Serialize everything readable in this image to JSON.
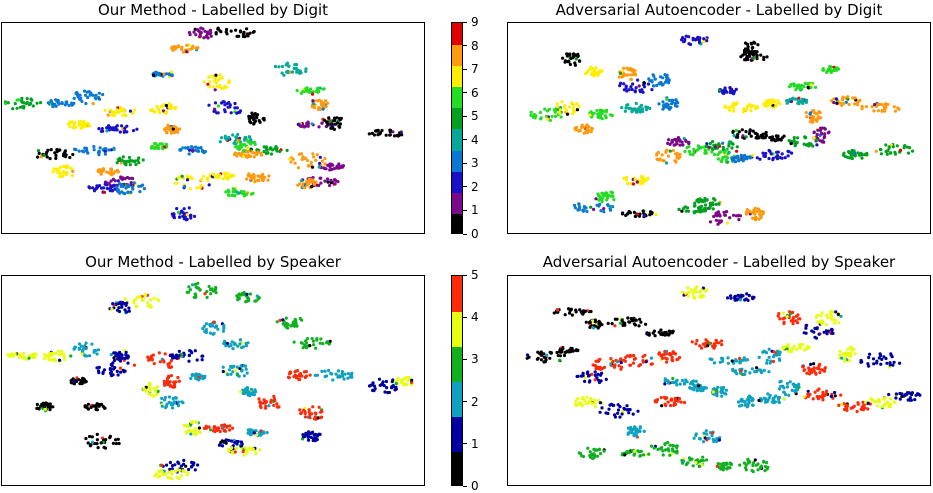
{
  "chart_data": [
    {
      "type": "scatter",
      "title": "Our Method - Labelled by Digit",
      "color_by": "digit",
      "colorbar": {
        "ticks": [
          0,
          1,
          2,
          3,
          4,
          5,
          6,
          7,
          8,
          9
        ],
        "range": [
          0,
          9
        ]
      },
      "clusters": [
        {
          "x": 0.13,
          "y": 0.62,
          "label": 3
        },
        {
          "x": 0.2,
          "y": 0.65,
          "label": 3
        },
        {
          "x": 0.27,
          "y": 0.5,
          "label": 2
        },
        {
          "x": 0.38,
          "y": 0.76,
          "label": 3
        },
        {
          "x": 0.43,
          "y": 0.88,
          "label": 8
        },
        {
          "x": 0.47,
          "y": 0.95,
          "label": 1
        },
        {
          "x": 0.55,
          "y": 0.96,
          "label": 0
        },
        {
          "x": 0.05,
          "y": 0.62,
          "label": 5
        },
        {
          "x": 0.18,
          "y": 0.52,
          "label": 7
        },
        {
          "x": 0.22,
          "y": 0.4,
          "label": 3
        },
        {
          "x": 0.3,
          "y": 0.35,
          "label": 5
        },
        {
          "x": 0.38,
          "y": 0.6,
          "label": 7
        },
        {
          "x": 0.4,
          "y": 0.5,
          "label": 8
        },
        {
          "x": 0.37,
          "y": 0.42,
          "label": 6
        },
        {
          "x": 0.45,
          "y": 0.4,
          "label": 3
        },
        {
          "x": 0.51,
          "y": 0.72,
          "label": 7
        },
        {
          "x": 0.53,
          "y": 0.6,
          "label": 2
        },
        {
          "x": 0.55,
          "y": 0.45,
          "label": 4
        },
        {
          "x": 0.6,
          "y": 0.55,
          "label": 0
        },
        {
          "x": 0.57,
          "y": 0.42,
          "label": 6
        },
        {
          "x": 0.63,
          "y": 0.4,
          "label": 5
        },
        {
          "x": 0.68,
          "y": 0.78,
          "label": 4
        },
        {
          "x": 0.73,
          "y": 0.68,
          "label": 6
        },
        {
          "x": 0.75,
          "y": 0.62,
          "label": 8
        },
        {
          "x": 0.74,
          "y": 0.52,
          "label": 1
        },
        {
          "x": 0.78,
          "y": 0.53,
          "label": 0
        },
        {
          "x": 0.12,
          "y": 0.38,
          "label": 0
        },
        {
          "x": 0.14,
          "y": 0.3,
          "label": 7
        },
        {
          "x": 0.25,
          "y": 0.3,
          "label": 8
        },
        {
          "x": 0.28,
          "y": 0.25,
          "label": 1
        },
        {
          "x": 0.45,
          "y": 0.25,
          "label": 7
        },
        {
          "x": 0.52,
          "y": 0.28,
          "label": 7
        },
        {
          "x": 0.56,
          "y": 0.2,
          "label": 6
        },
        {
          "x": 0.6,
          "y": 0.27,
          "label": 8
        },
        {
          "x": 0.58,
          "y": 0.38,
          "label": 8
        },
        {
          "x": 0.72,
          "y": 0.35,
          "label": 8
        },
        {
          "x": 0.78,
          "y": 0.32,
          "label": 1
        },
        {
          "x": 0.75,
          "y": 0.25,
          "label": 1
        },
        {
          "x": 0.72,
          "y": 0.24,
          "label": 8
        },
        {
          "x": 0.91,
          "y": 0.48,
          "label": 0
        },
        {
          "x": 0.24,
          "y": 0.22,
          "label": 2
        },
        {
          "x": 0.3,
          "y": 0.22,
          "label": 3
        },
        {
          "x": 0.43,
          "y": 0.1,
          "label": 2
        },
        {
          "x": 0.28,
          "y": 0.58,
          "label": 7
        }
      ]
    },
    {
      "type": "scatter",
      "title": "Adversarial Autoencoder - Labelled by Digit",
      "color_by": "digit",
      "clusters": [
        {
          "x": 0.15,
          "y": 0.83,
          "label": 0
        },
        {
          "x": 0.2,
          "y": 0.77,
          "label": 7
        },
        {
          "x": 0.28,
          "y": 0.76,
          "label": 8
        },
        {
          "x": 0.36,
          "y": 0.73,
          "label": 3
        },
        {
          "x": 0.44,
          "y": 0.92,
          "label": 2
        },
        {
          "x": 0.57,
          "y": 0.88,
          "label": 0
        },
        {
          "x": 0.09,
          "y": 0.57,
          "label": 6
        },
        {
          "x": 0.14,
          "y": 0.6,
          "label": 7
        },
        {
          "x": 0.18,
          "y": 0.5,
          "label": 8
        },
        {
          "x": 0.22,
          "y": 0.57,
          "label": 6
        },
        {
          "x": 0.3,
          "y": 0.6,
          "label": 4
        },
        {
          "x": 0.38,
          "y": 0.62,
          "label": 3
        },
        {
          "x": 0.4,
          "y": 0.44,
          "label": 1
        },
        {
          "x": 0.45,
          "y": 0.4,
          "label": 6
        },
        {
          "x": 0.38,
          "y": 0.37,
          "label": 8
        },
        {
          "x": 0.52,
          "y": 0.68,
          "label": 2
        },
        {
          "x": 0.55,
          "y": 0.6,
          "label": 7
        },
        {
          "x": 0.57,
          "y": 0.48,
          "label": 0
        },
        {
          "x": 0.5,
          "y": 0.42,
          "label": 5
        },
        {
          "x": 0.62,
          "y": 0.62,
          "label": 7
        },
        {
          "x": 0.68,
          "y": 0.63,
          "label": 4
        },
        {
          "x": 0.72,
          "y": 0.56,
          "label": 8
        },
        {
          "x": 0.74,
          "y": 0.47,
          "label": 1
        },
        {
          "x": 0.8,
          "y": 0.63,
          "label": 8
        },
        {
          "x": 0.88,
          "y": 0.6,
          "label": 8
        },
        {
          "x": 0.69,
          "y": 0.44,
          "label": 5
        },
        {
          "x": 0.82,
          "y": 0.38,
          "label": 5
        },
        {
          "x": 0.91,
          "y": 0.4,
          "label": 5
        },
        {
          "x": 0.62,
          "y": 0.38,
          "label": 2
        },
        {
          "x": 0.52,
          "y": 0.37,
          "label": 6
        },
        {
          "x": 0.55,
          "y": 0.36,
          "label": 3
        },
        {
          "x": 0.62,
          "y": 0.46,
          "label": 0
        },
        {
          "x": 0.7,
          "y": 0.7,
          "label": 6
        },
        {
          "x": 0.76,
          "y": 0.78,
          "label": 6
        },
        {
          "x": 0.23,
          "y": 0.18,
          "label": 6
        },
        {
          "x": 0.2,
          "y": 0.13,
          "label": 3
        },
        {
          "x": 0.31,
          "y": 0.1,
          "label": 0
        },
        {
          "x": 0.44,
          "y": 0.12,
          "label": 5
        },
        {
          "x": 0.51,
          "y": 0.08,
          "label": 1
        },
        {
          "x": 0.58,
          "y": 0.1,
          "label": 8
        },
        {
          "x": 0.3,
          "y": 0.26,
          "label": 7
        },
        {
          "x": 0.47,
          "y": 0.15,
          "label": 5
        },
        {
          "x": 0.58,
          "y": 0.84,
          "label": 0
        },
        {
          "x": 0.3,
          "y": 0.7,
          "label": 2
        }
      ]
    },
    {
      "type": "scatter",
      "title": "Our Method - Labelled by Speaker",
      "color_by": "speaker",
      "colorbar": {
        "ticks": [
          0,
          1,
          2,
          3,
          4,
          5
        ],
        "range": [
          0,
          5
        ]
      },
      "clusters": [
        {
          "x": 0.13,
          "y": 0.62,
          "label": 4
        },
        {
          "x": 0.2,
          "y": 0.65,
          "label": 2
        },
        {
          "x": 0.27,
          "y": 0.56,
          "label": 1
        },
        {
          "x": 0.33,
          "y": 0.88,
          "label": 4
        },
        {
          "x": 0.47,
          "y": 0.93,
          "label": 3
        },
        {
          "x": 0.58,
          "y": 0.9,
          "label": 3
        },
        {
          "x": 0.05,
          "y": 0.62,
          "label": 4
        },
        {
          "x": 0.18,
          "y": 0.5,
          "label": 0
        },
        {
          "x": 0.22,
          "y": 0.38,
          "label": 0
        },
        {
          "x": 0.1,
          "y": 0.38,
          "label": 0
        },
        {
          "x": 0.35,
          "y": 0.46,
          "label": 4
        },
        {
          "x": 0.38,
          "y": 0.6,
          "label": 5
        },
        {
          "x": 0.4,
          "y": 0.5,
          "label": 5
        },
        {
          "x": 0.44,
          "y": 0.62,
          "label": 1
        },
        {
          "x": 0.46,
          "y": 0.52,
          "label": 2
        },
        {
          "x": 0.55,
          "y": 0.68,
          "label": 2
        },
        {
          "x": 0.55,
          "y": 0.55,
          "label": 2
        },
        {
          "x": 0.58,
          "y": 0.45,
          "label": 2
        },
        {
          "x": 0.63,
          "y": 0.4,
          "label": 5
        },
        {
          "x": 0.68,
          "y": 0.78,
          "label": 3
        },
        {
          "x": 0.73,
          "y": 0.68,
          "label": 3
        },
        {
          "x": 0.7,
          "y": 0.53,
          "label": 5
        },
        {
          "x": 0.78,
          "y": 0.53,
          "label": 2
        },
        {
          "x": 0.9,
          "y": 0.48,
          "label": 1
        },
        {
          "x": 0.95,
          "y": 0.5,
          "label": 4
        },
        {
          "x": 0.28,
          "y": 0.62,
          "label": 1
        },
        {
          "x": 0.24,
          "y": 0.22,
          "label": 0
        },
        {
          "x": 0.45,
          "y": 0.28,
          "label": 4
        },
        {
          "x": 0.51,
          "y": 0.28,
          "label": 5
        },
        {
          "x": 0.54,
          "y": 0.2,
          "label": 1
        },
        {
          "x": 0.57,
          "y": 0.17,
          "label": 4
        },
        {
          "x": 0.6,
          "y": 0.26,
          "label": 2
        },
        {
          "x": 0.73,
          "y": 0.35,
          "label": 5
        },
        {
          "x": 0.73,
          "y": 0.24,
          "label": 1
        },
        {
          "x": 0.42,
          "y": 0.1,
          "label": 1
        },
        {
          "x": 0.4,
          "y": 0.06,
          "label": 4
        },
        {
          "x": 0.28,
          "y": 0.85,
          "label": 1
        },
        {
          "x": 0.5,
          "y": 0.75,
          "label": 2
        },
        {
          "x": 0.4,
          "y": 0.4,
          "label": 2
        }
      ]
    },
    {
      "type": "scatter",
      "title": "Adversarial Autoencoder - Labelled by Speaker",
      "color_by": "speaker",
      "clusters": [
        {
          "x": 0.15,
          "y": 0.83,
          "label": 0
        },
        {
          "x": 0.2,
          "y": 0.77,
          "label": 0
        },
        {
          "x": 0.28,
          "y": 0.78,
          "label": 0
        },
        {
          "x": 0.36,
          "y": 0.73,
          "label": 0
        },
        {
          "x": 0.44,
          "y": 0.92,
          "label": 4
        },
        {
          "x": 0.55,
          "y": 0.9,
          "label": 1
        },
        {
          "x": 0.09,
          "y": 0.62,
          "label": 0
        },
        {
          "x": 0.14,
          "y": 0.65,
          "label": 0
        },
        {
          "x": 0.2,
          "y": 0.52,
          "label": 1
        },
        {
          "x": 0.24,
          "y": 0.58,
          "label": 5
        },
        {
          "x": 0.3,
          "y": 0.6,
          "label": 5
        },
        {
          "x": 0.38,
          "y": 0.62,
          "label": 5
        },
        {
          "x": 0.4,
          "y": 0.5,
          "label": 2
        },
        {
          "x": 0.45,
          "y": 0.47,
          "label": 2
        },
        {
          "x": 0.38,
          "y": 0.4,
          "label": 5
        },
        {
          "x": 0.47,
          "y": 0.68,
          "label": 5
        },
        {
          "x": 0.52,
          "y": 0.6,
          "label": 2
        },
        {
          "x": 0.57,
          "y": 0.55,
          "label": 2
        },
        {
          "x": 0.5,
          "y": 0.45,
          "label": 2
        },
        {
          "x": 0.62,
          "y": 0.62,
          "label": 2
        },
        {
          "x": 0.68,
          "y": 0.66,
          "label": 4
        },
        {
          "x": 0.72,
          "y": 0.56,
          "label": 5
        },
        {
          "x": 0.66,
          "y": 0.47,
          "label": 2
        },
        {
          "x": 0.8,
          "y": 0.63,
          "label": 4
        },
        {
          "x": 0.88,
          "y": 0.6,
          "label": 1
        },
        {
          "x": 0.74,
          "y": 0.44,
          "label": 5
        },
        {
          "x": 0.82,
          "y": 0.38,
          "label": 5
        },
        {
          "x": 0.93,
          "y": 0.43,
          "label": 1
        },
        {
          "x": 0.88,
          "y": 0.4,
          "label": 4
        },
        {
          "x": 0.56,
          "y": 0.4,
          "label": 2
        },
        {
          "x": 0.62,
          "y": 0.42,
          "label": 2
        },
        {
          "x": 0.73,
          "y": 0.74,
          "label": 1
        },
        {
          "x": 0.76,
          "y": 0.8,
          "label": 4
        },
        {
          "x": 0.66,
          "y": 0.8,
          "label": 5
        },
        {
          "x": 0.2,
          "y": 0.16,
          "label": 3
        },
        {
          "x": 0.3,
          "y": 0.16,
          "label": 3
        },
        {
          "x": 0.37,
          "y": 0.18,
          "label": 3
        },
        {
          "x": 0.44,
          "y": 0.12,
          "label": 3
        },
        {
          "x": 0.51,
          "y": 0.1,
          "label": 3
        },
        {
          "x": 0.58,
          "y": 0.1,
          "label": 3
        },
        {
          "x": 0.3,
          "y": 0.26,
          "label": 2
        },
        {
          "x": 0.47,
          "y": 0.24,
          "label": 2
        },
        {
          "x": 0.19,
          "y": 0.4,
          "label": 4
        },
        {
          "x": 0.26,
          "y": 0.36,
          "label": 1
        }
      ]
    }
  ],
  "palettes": {
    "digit": [
      "#000000",
      "#7a0a8a",
      "#1a10c8",
      "#0a78d2",
      "#06a89a",
      "#02a020",
      "#22dd22",
      "#ffee00",
      "#ff9a10",
      "#e00000"
    ],
    "speaker": [
      "#000000",
      "#0000a0",
      "#10a0c0",
      "#10b020",
      "#e6ff10",
      "#ff2a0a"
    ]
  }
}
